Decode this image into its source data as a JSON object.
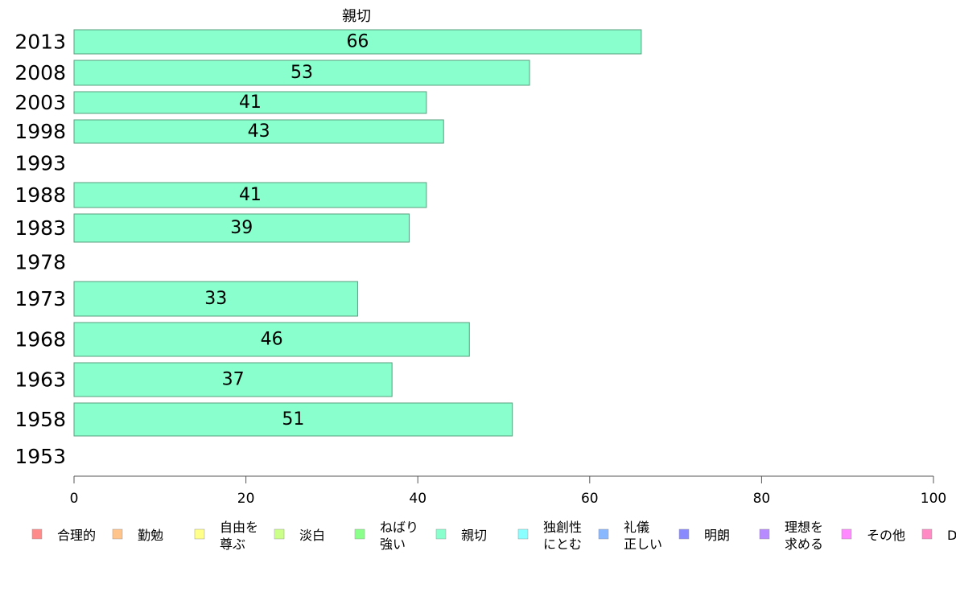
{
  "chart_data": {
    "type": "bar",
    "orientation": "horizontal",
    "title": "親切",
    "categories": [
      "2013",
      "2008",
      "2003",
      "1998",
      "1993",
      "1988",
      "1983",
      "1978",
      "1973",
      "1968",
      "1963",
      "1958",
      "1953"
    ],
    "series": [
      {
        "name": "親切",
        "values": [
          66,
          53,
          41,
          43,
          null,
          41,
          39,
          null,
          33,
          46,
          37,
          51,
          null
        ]
      }
    ],
    "data_labels": [
      "66",
      "53",
      "41",
      "43",
      "",
      "41",
      "39",
      "",
      "33",
      "46",
      "37",
      "51",
      ""
    ],
    "xlim": [
      0,
      100
    ],
    "xticks": [
      "0",
      "20",
      "40",
      "60",
      "80",
      "100"
    ],
    "bar_color": "#88ffcc",
    "bar_border_color": "#5a9f80",
    "grid": false,
    "legend_position": "bottom",
    "legend": [
      {
        "lines": [
          "合理的"
        ],
        "color": "#ff8a8a"
      },
      {
        "lines": [
          "勤勉"
        ],
        "color": "#ffc48a"
      },
      {
        "lines": [
          "自由を",
          "尊ぶ"
        ],
        "color": "#ffff8a"
      },
      {
        "lines": [
          "淡白"
        ],
        "color": "#ccff8a"
      },
      {
        "lines": [
          "ねばり",
          "強い"
        ],
        "color": "#8aff8a"
      },
      {
        "lines": [
          "親切"
        ],
        "color": "#88ffcc"
      },
      {
        "lines": [
          "独創性",
          "にとむ"
        ],
        "color": "#8affff"
      },
      {
        "lines": [
          "礼儀",
          "正しい"
        ],
        "color": "#8ab8ff"
      },
      {
        "lines": [
          "明朗"
        ],
        "color": "#8a8aff"
      },
      {
        "lines": [
          "理想を",
          "求める"
        ],
        "color": "#b88aff"
      },
      {
        "lines": [
          "その他"
        ],
        "color": "#ff8aff"
      },
      {
        "lines": [
          "D"
        ],
        "color": "#ff8ac4"
      }
    ]
  }
}
